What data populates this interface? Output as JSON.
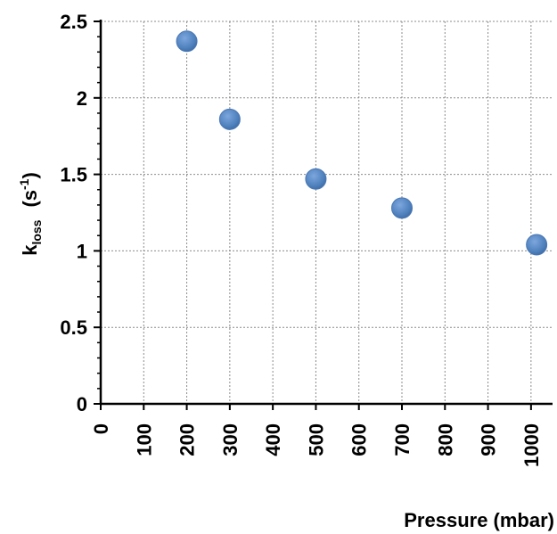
{
  "chart_data": {
    "type": "scatter",
    "xlabel": "Pressure (mbar)",
    "ylabel": {
      "main": "k",
      "sub": "loss",
      "unit_prefix": "(s",
      "unit_sup": "-1",
      "unit_suffix": ")"
    },
    "xlim": [
      0,
      1050
    ],
    "ylim": [
      0,
      2.5
    ],
    "x_ticks": [
      0,
      100,
      200,
      300,
      400,
      500,
      600,
      700,
      800,
      900,
      1000
    ],
    "x_tick_labels": [
      "0",
      "100",
      "200",
      "300",
      "400",
      "500",
      "600",
      "700",
      "800",
      "900",
      "1000"
    ],
    "y_ticks": [
      0,
      0.5,
      1,
      1.5,
      2,
      2.5
    ],
    "y_tick_labels": [
      "0",
      "0.5",
      "1",
      "1.5",
      "2",
      "2.5"
    ],
    "grid": true,
    "grid_style": "dashed",
    "legend": "none",
    "marker_color": "#4f81bd",
    "points": [
      {
        "x": 200,
        "y": 2.37
      },
      {
        "x": 300,
        "y": 1.86
      },
      {
        "x": 500,
        "y": 1.47
      },
      {
        "x": 700,
        "y": 1.28
      },
      {
        "x": 1013,
        "y": 1.04
      }
    ]
  }
}
